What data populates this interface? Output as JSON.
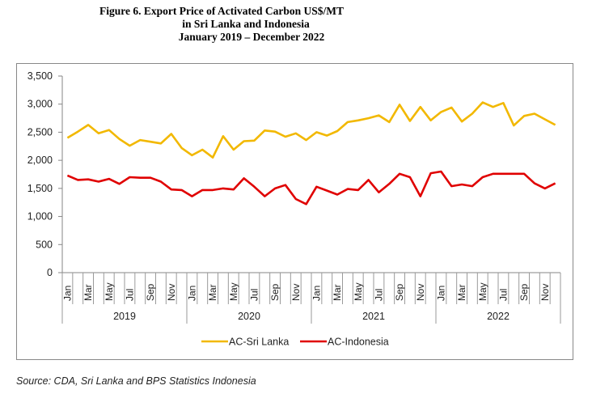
{
  "title_lines": [
    "Figure 6. Export Price of Activated Carbon US$/MT",
    "in Sri Lanka and Indonesia",
    "January 2019 – December 2022"
  ],
  "source": "Source: CDA, Sri Lanka and BPS Statistics Indonesia",
  "chart_data": {
    "type": "line",
    "title": "Figure 6. Export Price of Activated Carbon US$/MT in Sri Lanka and Indonesia, January 2019 – December 2022",
    "xlabel": "",
    "ylabel": "",
    "ylim": [
      0,
      3500
    ],
    "yticks": [
      0,
      500,
      1000,
      1500,
      2000,
      2500,
      3000,
      3500
    ],
    "ytick_labels": [
      "0",
      "500",
      "1,000",
      "1,500",
      "2,000",
      "2,500",
      "3,000",
      "3,500"
    ],
    "years": [
      "2019",
      "2020",
      "2021",
      "2022"
    ],
    "month_labels": [
      "Jan",
      "",
      "Mar",
      "",
      "May",
      "",
      "Jul",
      "",
      "Sep",
      "",
      "Nov",
      ""
    ],
    "legend_position": "bottom",
    "grid": false,
    "x": [
      "Jan 2019",
      "Feb 2019",
      "Mar 2019",
      "Apr 2019",
      "May 2019",
      "Jun 2019",
      "Jul 2019",
      "Aug 2019",
      "Sep 2019",
      "Oct 2019",
      "Nov 2019",
      "Dec 2019",
      "Jan 2020",
      "Feb 2020",
      "Mar 2020",
      "Apr 2020",
      "May 2020",
      "Jun 2020",
      "Jul 2020",
      "Aug 2020",
      "Sep 2020",
      "Oct 2020",
      "Nov 2020",
      "Dec 2020",
      "Jan 2021",
      "Feb 2021",
      "Mar 2021",
      "Apr 2021",
      "May 2021",
      "Jun 2021",
      "Jul 2021",
      "Aug 2021",
      "Sep 2021",
      "Oct 2021",
      "Nov 2021",
      "Dec 2021",
      "Jan 2022",
      "Feb 2022",
      "Mar 2022",
      "Apr 2022",
      "May 2022",
      "Jun 2022",
      "Jul 2022",
      "Aug 2022",
      "Sep 2022",
      "Oct 2022",
      "Nov 2022",
      "Dec 2022"
    ],
    "series": [
      {
        "name": "AC-Sri Lanka",
        "color": "#f2b800",
        "values": [
          2400,
          2510,
          2630,
          2480,
          2540,
          2380,
          2260,
          2360,
          2330,
          2300,
          2470,
          2220,
          2090,
          2190,
          2050,
          2430,
          2190,
          2340,
          2350,
          2530,
          2510,
          2420,
          2480,
          2360,
          2500,
          2440,
          2520,
          2680,
          2710,
          2750,
          2800,
          2680,
          2990,
          2700,
          2950,
          2710,
          2860,
          2940,
          2690,
          2830,
          3030,
          2950,
          3020,
          2620,
          2790,
          2830,
          2730,
          2630
        ]
      },
      {
        "name": "AC-Indonesia",
        "color": "#e00000",
        "values": [
          1730,
          1650,
          1660,
          1620,
          1670,
          1580,
          1700,
          1690,
          1690,
          1620,
          1480,
          1470,
          1360,
          1470,
          1470,
          1500,
          1480,
          1680,
          1530,
          1360,
          1500,
          1560,
          1310,
          1220,
          1530,
          1460,
          1390,
          1490,
          1470,
          1650,
          1430,
          1580,
          1760,
          1700,
          1360,
          1770,
          1800,
          1540,
          1570,
          1540,
          1700,
          1760,
          1760,
          1760,
          1760,
          1590,
          1500,
          1590
        ]
      }
    ]
  }
}
